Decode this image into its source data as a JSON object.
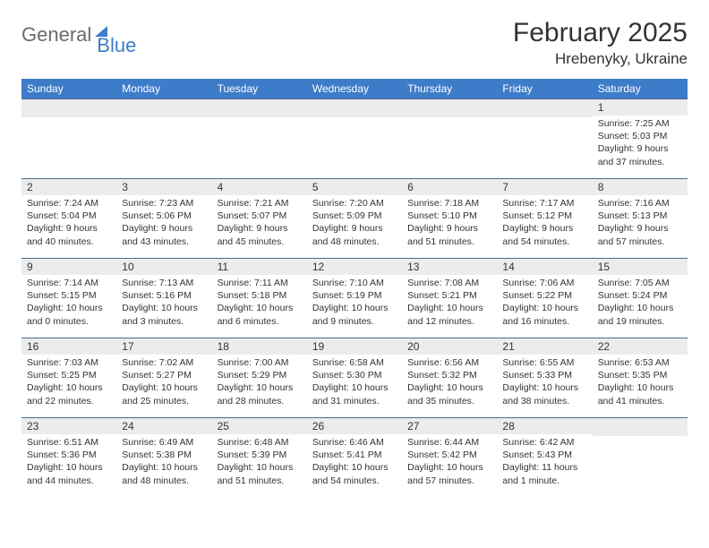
{
  "logo": {
    "text1": "General",
    "text2": "Blue"
  },
  "title": "February 2025",
  "location": "Hrebenyky, Ukraine",
  "colors": {
    "header_bg": "#3d7cc9",
    "header_text": "#ffffff",
    "daynum_bg": "#ececec",
    "border": "#4a6a8a",
    "text": "#333333",
    "logo_gray": "#6a6a6a",
    "logo_blue": "#3d7cc9"
  },
  "weekdays": [
    "Sunday",
    "Monday",
    "Tuesday",
    "Wednesday",
    "Thursday",
    "Friday",
    "Saturday"
  ],
  "layout": {
    "first_weekday_index": 6,
    "days_in_month": 28
  },
  "days": {
    "1": {
      "sunrise": "7:25 AM",
      "sunset": "5:03 PM",
      "daylight": "9 hours and 37 minutes."
    },
    "2": {
      "sunrise": "7:24 AM",
      "sunset": "5:04 PM",
      "daylight": "9 hours and 40 minutes."
    },
    "3": {
      "sunrise": "7:23 AM",
      "sunset": "5:06 PM",
      "daylight": "9 hours and 43 minutes."
    },
    "4": {
      "sunrise": "7:21 AM",
      "sunset": "5:07 PM",
      "daylight": "9 hours and 45 minutes."
    },
    "5": {
      "sunrise": "7:20 AM",
      "sunset": "5:09 PM",
      "daylight": "9 hours and 48 minutes."
    },
    "6": {
      "sunrise": "7:18 AM",
      "sunset": "5:10 PM",
      "daylight": "9 hours and 51 minutes."
    },
    "7": {
      "sunrise": "7:17 AM",
      "sunset": "5:12 PM",
      "daylight": "9 hours and 54 minutes."
    },
    "8": {
      "sunrise": "7:16 AM",
      "sunset": "5:13 PM",
      "daylight": "9 hours and 57 minutes."
    },
    "9": {
      "sunrise": "7:14 AM",
      "sunset": "5:15 PM",
      "daylight": "10 hours and 0 minutes."
    },
    "10": {
      "sunrise": "7:13 AM",
      "sunset": "5:16 PM",
      "daylight": "10 hours and 3 minutes."
    },
    "11": {
      "sunrise": "7:11 AM",
      "sunset": "5:18 PM",
      "daylight": "10 hours and 6 minutes."
    },
    "12": {
      "sunrise": "7:10 AM",
      "sunset": "5:19 PM",
      "daylight": "10 hours and 9 minutes."
    },
    "13": {
      "sunrise": "7:08 AM",
      "sunset": "5:21 PM",
      "daylight": "10 hours and 12 minutes."
    },
    "14": {
      "sunrise": "7:06 AM",
      "sunset": "5:22 PM",
      "daylight": "10 hours and 16 minutes."
    },
    "15": {
      "sunrise": "7:05 AM",
      "sunset": "5:24 PM",
      "daylight": "10 hours and 19 minutes."
    },
    "16": {
      "sunrise": "7:03 AM",
      "sunset": "5:25 PM",
      "daylight": "10 hours and 22 minutes."
    },
    "17": {
      "sunrise": "7:02 AM",
      "sunset": "5:27 PM",
      "daylight": "10 hours and 25 minutes."
    },
    "18": {
      "sunrise": "7:00 AM",
      "sunset": "5:29 PM",
      "daylight": "10 hours and 28 minutes."
    },
    "19": {
      "sunrise": "6:58 AM",
      "sunset": "5:30 PM",
      "daylight": "10 hours and 31 minutes."
    },
    "20": {
      "sunrise": "6:56 AM",
      "sunset": "5:32 PM",
      "daylight": "10 hours and 35 minutes."
    },
    "21": {
      "sunrise": "6:55 AM",
      "sunset": "5:33 PM",
      "daylight": "10 hours and 38 minutes."
    },
    "22": {
      "sunrise": "6:53 AM",
      "sunset": "5:35 PM",
      "daylight": "10 hours and 41 minutes."
    },
    "23": {
      "sunrise": "6:51 AM",
      "sunset": "5:36 PM",
      "daylight": "10 hours and 44 minutes."
    },
    "24": {
      "sunrise": "6:49 AM",
      "sunset": "5:38 PM",
      "daylight": "10 hours and 48 minutes."
    },
    "25": {
      "sunrise": "6:48 AM",
      "sunset": "5:39 PM",
      "daylight": "10 hours and 51 minutes."
    },
    "26": {
      "sunrise": "6:46 AM",
      "sunset": "5:41 PM",
      "daylight": "10 hours and 54 minutes."
    },
    "27": {
      "sunrise": "6:44 AM",
      "sunset": "5:42 PM",
      "daylight": "10 hours and 57 minutes."
    },
    "28": {
      "sunrise": "6:42 AM",
      "sunset": "5:43 PM",
      "daylight": "11 hours and 1 minute."
    }
  },
  "labels": {
    "sunrise": "Sunrise: ",
    "sunset": "Sunset: ",
    "daylight": "Daylight: "
  }
}
